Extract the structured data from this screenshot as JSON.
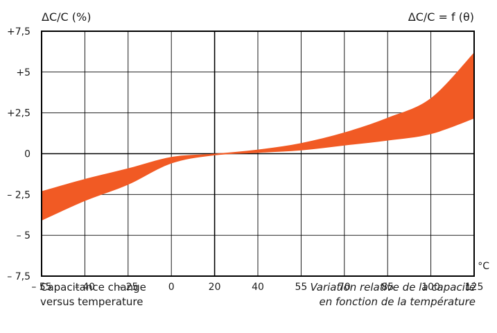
{
  "chart_data": {
    "type": "area",
    "title_left": "ΔC/C (%)",
    "title_right": "ΔC/C = f (θ)",
    "xlabel": "",
    "x_unit": "°C",
    "ylabel": "ΔC/C (%)",
    "x_ticks": [
      "– 55",
      "– 40",
      "– 25",
      "0",
      "20",
      "40",
      "55",
      "70",
      "85",
      "100",
      "125"
    ],
    "x_tick_values": [
      -55,
      -40,
      -25,
      0,
      20,
      40,
      55,
      70,
      85,
      100,
      125
    ],
    "y_ticks": [
      "+7,5",
      "+5",
      "+2,5",
      "0",
      "– 2,5",
      "– 5",
      "– 7,5"
    ],
    "y_tick_values": [
      7.5,
      5,
      2.5,
      0,
      -2.5,
      -5,
      -7.5
    ],
    "ylim": [
      -7.5,
      7.5
    ],
    "grid": true,
    "fill_color": "#f15a24",
    "series": [
      {
        "x": [
          -55,
          -40,
          -25,
          0,
          20,
          40,
          55,
          70,
          85,
          100,
          125
        ],
        "upper": [
          -2.3,
          -1.55,
          -0.9,
          -0.2,
          0.0,
          0.25,
          0.65,
          1.3,
          2.2,
          3.4,
          6.2
        ],
        "lower": [
          -4.1,
          -2.9,
          -1.9,
          -0.6,
          -0.1,
          0.05,
          0.2,
          0.5,
          0.8,
          1.2,
          2.15
        ]
      }
    ]
  },
  "captions": {
    "en_line1": "Capacitance change",
    "en_line2": "versus temperature",
    "fr_line1": "Variation relative de la capacité",
    "fr_line2": "en fonction de la température"
  }
}
